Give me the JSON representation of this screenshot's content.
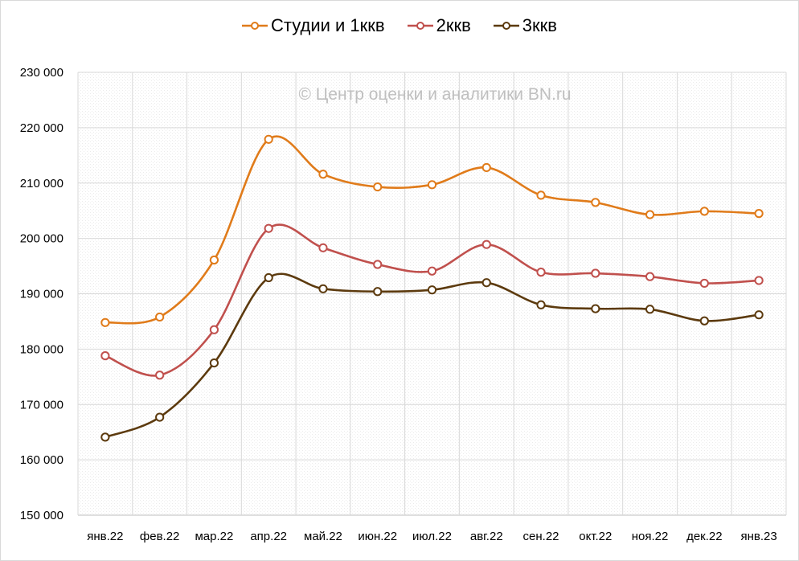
{
  "chart_data": {
    "type": "line",
    "title": "",
    "xlabel": "",
    "ylabel": "",
    "watermark": "© Центр оценки и аналитики BN.ru",
    "categories": [
      "янв.22",
      "фев.22",
      "мар.22",
      "апр.22",
      "май.22",
      "июн.22",
      "июл.22",
      "авг.22",
      "сен.22",
      "окт.22",
      "ноя.22",
      "дек.22",
      "янв.23"
    ],
    "ylim": [
      150000,
      230000
    ],
    "yticks": [
      150000,
      160000,
      170000,
      180000,
      190000,
      200000,
      210000,
      220000,
      230000
    ],
    "ytick_labels": [
      "150 000",
      "160 000",
      "170 000",
      "180 000",
      "190 000",
      "200 000",
      "210 000",
      "220 000",
      "230 000"
    ],
    "grid": true,
    "smooth": true,
    "legend_position": "top",
    "series": [
      {
        "name": "Студии и 1ккв",
        "color": "#E07B1A",
        "values": [
          184800,
          185800,
          196100,
          217900,
          211600,
          209300,
          209700,
          212800,
          207800,
          206500,
          204300,
          204900,
          204500
        ]
      },
      {
        "name": "2ккв",
        "color": "#C0504D",
        "values": [
          178800,
          175300,
          183500,
          201800,
          198300,
          195300,
          194100,
          198900,
          193900,
          193700,
          193100,
          191900,
          192400
        ]
      },
      {
        "name": "3ккв",
        "color": "#5C3A0E",
        "values": [
          164100,
          167700,
          177500,
          192900,
          190900,
          190400,
          190700,
          192000,
          188000,
          187300,
          187200,
          185100,
          186200
        ]
      }
    ]
  }
}
